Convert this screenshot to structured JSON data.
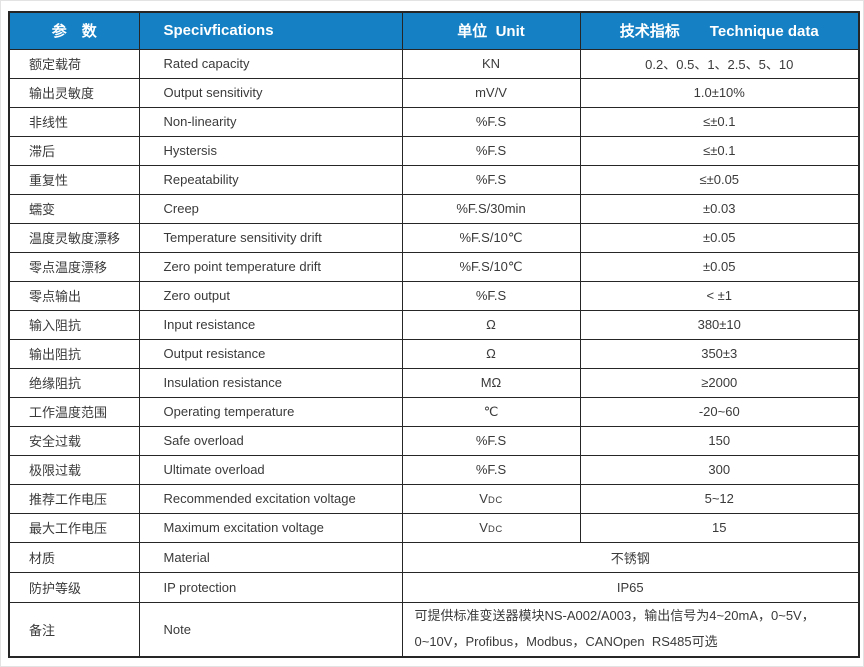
{
  "table": {
    "colors": {
      "header_bg": "#1581C4",
      "header_text": "#FFFFFF",
      "border": "#262626",
      "body_text": "#3A3A3A"
    },
    "headers": {
      "param": "参　数",
      "spec": "Specivfications",
      "unit": "单位  Unit",
      "tech": "技术指标　　Technique data"
    },
    "rows": [
      {
        "param": "额定载荷",
        "spec": "Rated capacity",
        "unit": "KN",
        "value": "0.2、0.5、1、2.5、5、10"
      },
      {
        "param": "输出灵敏度",
        "spec": "Output sensitivity",
        "unit": "mV/V",
        "value": "1.0±10%"
      },
      {
        "param": "非线性",
        "spec": "Non-linearity",
        "unit": "%F.S",
        "value": "≤±0.1"
      },
      {
        "param": "滞后",
        "spec": "Hystersis",
        "unit": "%F.S",
        "value": "≤±0.1"
      },
      {
        "param": "重复性",
        "spec": "Repeatability",
        "unit": "%F.S",
        "value": "≤±0.05"
      },
      {
        "param": "蠕变",
        "spec": "Creep",
        "unit": "%F.S/30min",
        "value": "±0.03"
      },
      {
        "param": "温度灵敏度漂移",
        "spec": "Temperature sensitivity drift",
        "unit": "%F.S/10℃",
        "value": "±0.05"
      },
      {
        "param": "零点温度漂移",
        "spec": "Zero point temperature drift",
        "unit": "%F.S/10℃",
        "value": "±0.05"
      },
      {
        "param": "零点输出",
        "spec": "Zero output",
        "unit": "%F.S",
        "value": "< ±1"
      },
      {
        "param": "输入阻抗",
        "spec": "Input resistance",
        "unit": "Ω",
        "value": "380±10"
      },
      {
        "param": "输出阻抗",
        "spec": "Output resistance",
        "unit": "Ω",
        "value": "350±3"
      },
      {
        "param": "绝缘阻抗",
        "spec": "Insulation resistance",
        "unit": "MΩ",
        "value": "≥2000"
      },
      {
        "param": "工作温度范围",
        "spec": "Operating temperature",
        "unit": "℃",
        "value": "-20~60"
      },
      {
        "param": "安全过载",
        "spec": "Safe overload",
        "unit": "%F.S",
        "value": "150"
      },
      {
        "param": "极限过载",
        "spec": "Ultimate overload",
        "unit": "%F.S",
        "value": "300"
      },
      {
        "param": "推荐工作电压",
        "spec": "Recommended excitation voltage",
        "unit": "VDC",
        "value": "5~12"
      },
      {
        "param": "最大工作电压",
        "spec": "Maximum excitation voltage",
        "unit": "VDC",
        "value": "15"
      }
    ],
    "merged_rows": [
      {
        "param": "材质",
        "spec": "Material",
        "value": "不锈钢"
      },
      {
        "param": "防护等级",
        "spec": "IP protection",
        "value": "IP65"
      },
      {
        "param": "备注",
        "spec": "Note",
        "value": [
          "可提供标准变送器模块NS-A002/A003，输出信号为4~20mA，0~5V，",
          "0~10V，Profibus，Modbus，CANOpen  RS485可选"
        ]
      }
    ]
  }
}
